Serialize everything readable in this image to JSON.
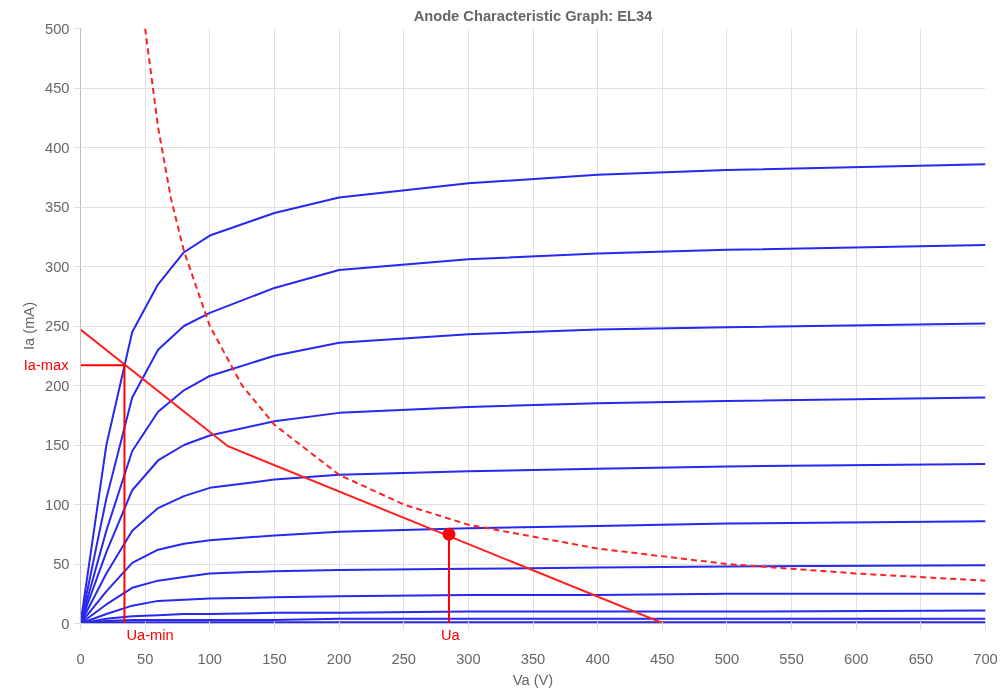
{
  "chart_data": {
    "type": "line",
    "title": "Anode Characteristic Graph: EL34",
    "xlabel": "Va (V)",
    "ylabel": "Ia (mA)",
    "xlim": [
      0,
      700
    ],
    "ylim": [
      0,
      500
    ],
    "xticks": [
      0,
      50,
      100,
      150,
      200,
      250,
      300,
      350,
      400,
      450,
      500,
      550,
      600,
      650,
      700
    ],
    "yticks": [
      0,
      50,
      100,
      150,
      200,
      250,
      300,
      350,
      400,
      450,
      500
    ],
    "grid": true,
    "legend": false,
    "x": [
      0,
      20,
      40,
      60,
      80,
      100,
      150,
      200,
      300,
      400,
      500,
      700
    ],
    "series": [
      {
        "color": "#2828f0",
        "values": [
          0,
          150,
          245,
          285,
          312,
          326,
          345,
          358,
          370,
          377,
          381,
          386
        ]
      },
      {
        "color": "#2828f0",
        "values": [
          0,
          105,
          190,
          230,
          250,
          261,
          282,
          297,
          306,
          311,
          314,
          318
        ]
      },
      {
        "color": "#2828f0",
        "values": [
          0,
          78,
          145,
          178,
          196,
          208,
          225,
          236,
          243,
          247,
          249,
          252
        ]
      },
      {
        "color": "#2828f0",
        "values": [
          0,
          60,
          112,
          137,
          150,
          158,
          170,
          177,
          182,
          185,
          187,
          190
        ]
      },
      {
        "color": "#2828f0",
        "values": [
          0,
          42,
          78,
          97,
          107,
          114,
          121,
          125,
          128,
          130,
          132,
          134
        ]
      },
      {
        "color": "#2828f0",
        "values": [
          0,
          27,
          51,
          62,
          67,
          70,
          74,
          77,
          80,
          82,
          84,
          86
        ]
      },
      {
        "color": "#2828f0",
        "values": [
          0,
          16,
          30,
          36,
          39,
          42,
          44,
          45,
          46,
          47,
          48,
          49
        ]
      },
      {
        "color": "#2828f0",
        "values": [
          0,
          8,
          15,
          19,
          20,
          21,
          22,
          23,
          24,
          24,
          25,
          25
        ]
      },
      {
        "color": "#2828f0",
        "values": [
          0,
          4,
          6,
          7,
          8,
          8,
          9,
          9,
          10,
          10,
          10,
          11
        ]
      },
      {
        "color": "#2828f0",
        "values": [
          0,
          2,
          3,
          3,
          3,
          3,
          3,
          4,
          4,
          4,
          4,
          4
        ]
      },
      {
        "color": "#2828f0",
        "values": [
          0,
          1,
          1,
          1,
          1,
          1,
          1,
          1,
          1,
          1,
          1,
          1
        ]
      },
      {
        "color": "#ff2020",
        "x": [
          0,
          114,
          451
        ],
        "values": [
          247,
          149,
          0
        ]
      },
      {
        "color": "#ff2020",
        "line_style": "dashed",
        "x": [
          50,
          60,
          70,
          80,
          100,
          125,
          150,
          200,
          250,
          300,
          400,
          500,
          600,
          700
        ],
        "values": [
          500,
          417,
          357,
          313,
          250,
          200,
          167,
          125,
          100,
          83,
          63,
          50,
          42,
          36
        ]
      },
      {
        "color": "#ff0000",
        "x": [
          34,
          34,
          0
        ],
        "values": [
          0,
          217,
          217
        ]
      },
      {
        "color": "#ff0000",
        "x": [
          285,
          285
        ],
        "values": [
          0,
          75
        ]
      },
      {
        "type": "scatter",
        "marker": "circle",
        "color": "#ff0000",
        "x": [
          285
        ],
        "values": [
          75
        ]
      }
    ],
    "annotations": [
      {
        "text": "Ia-max",
        "x": 0,
        "y": 217
      },
      {
        "text": "Ua-min",
        "x": 34,
        "y": 0
      },
      {
        "text": "Ua",
        "x": 285,
        "y": 0
      }
    ]
  }
}
